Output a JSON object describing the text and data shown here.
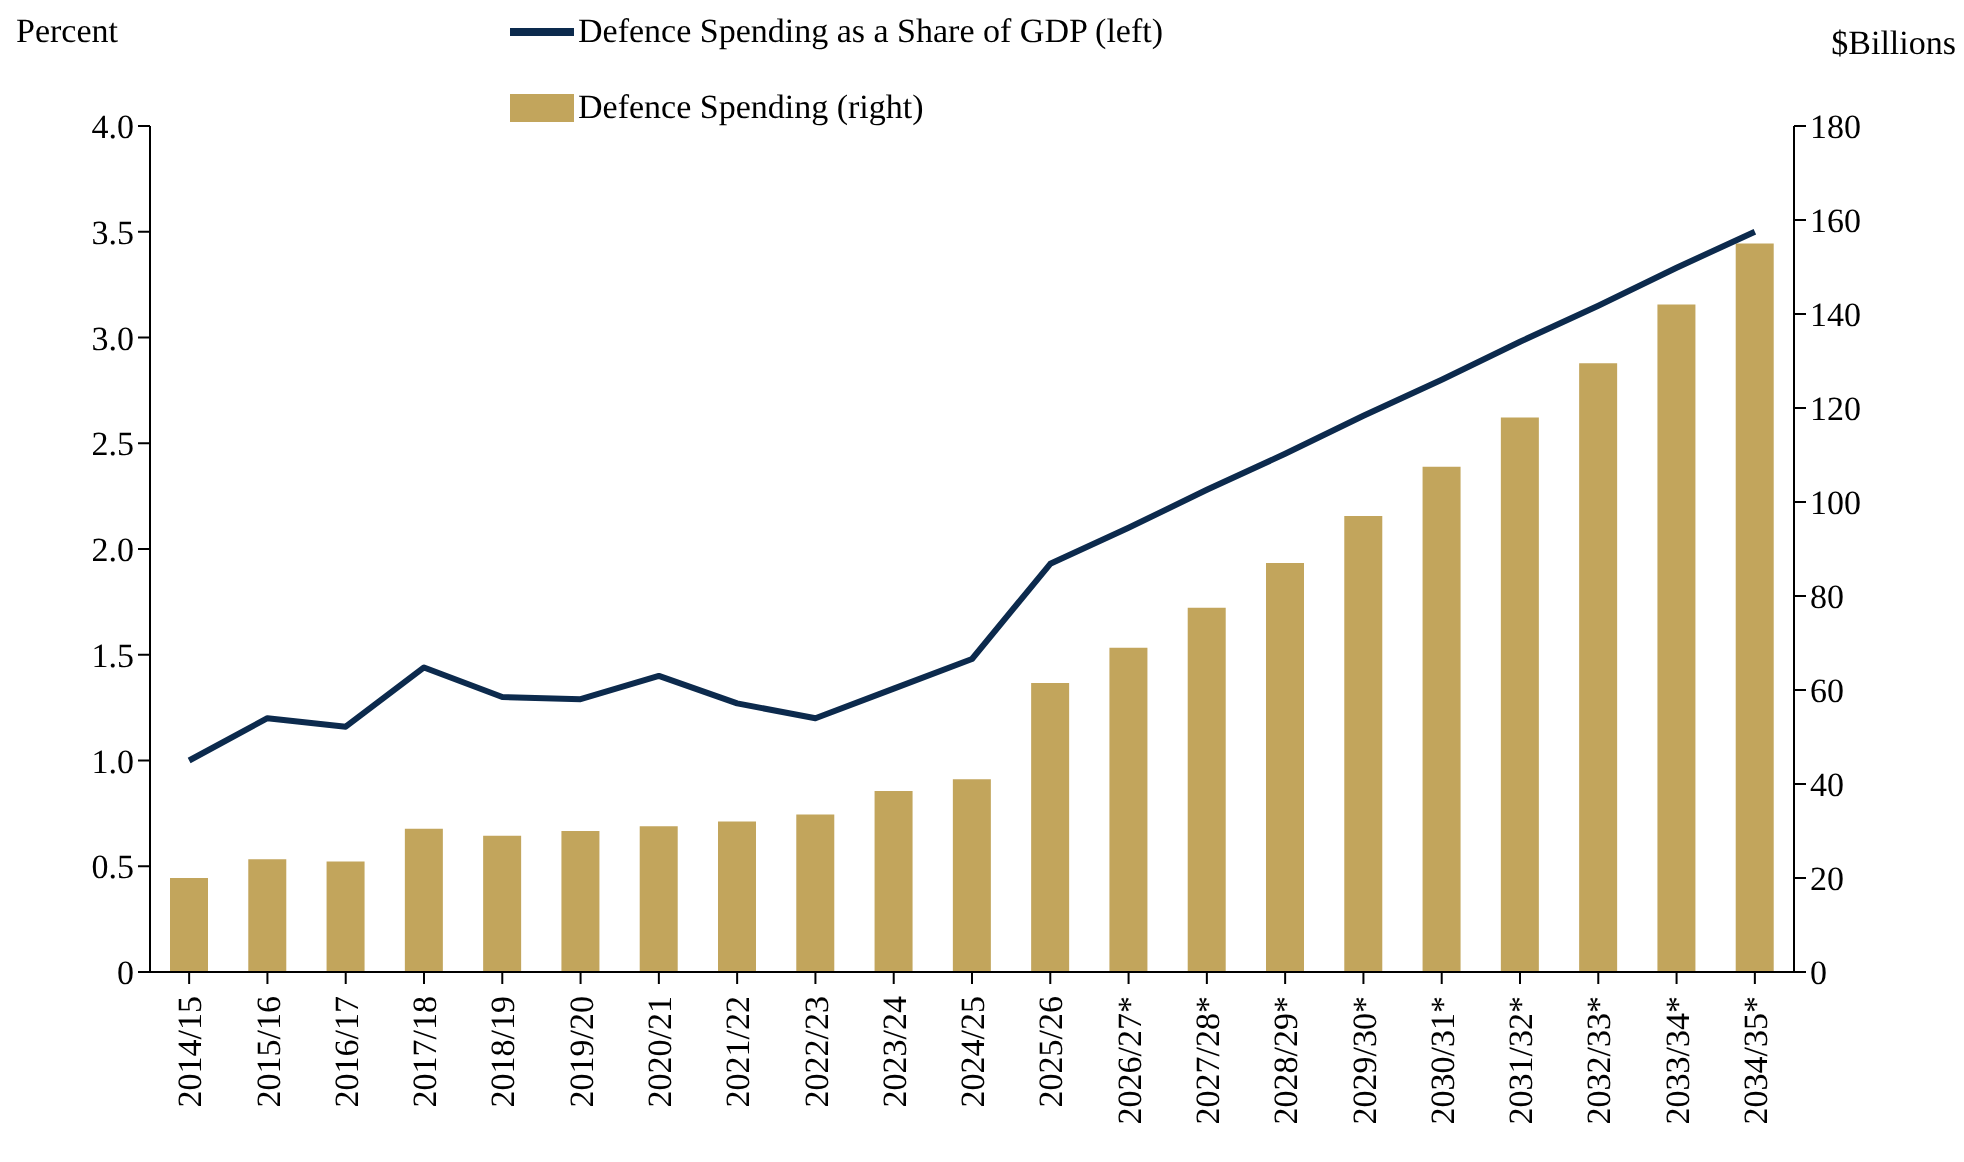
{
  "chart_data": {
    "type": "bar",
    "categories": [
      "2014/15",
      "2015/16",
      "2016/17",
      "2017/18",
      "2018/19",
      "2019/20",
      "2020/21",
      "2021/22",
      "2022/23",
      "2023/24",
      "2024/25",
      "2025/26",
      "2026/27*",
      "2027/28*",
      "2028/29*",
      "2029/30*",
      "2030/31*",
      "2031/32*",
      "2032/33*",
      "2033/34*",
      "2034/35*"
    ],
    "series": [
      {
        "name": "Defence Spending as a Share of GDP (left)",
        "type": "line",
        "color": "#0c2a4d",
        "values": [
          1.0,
          1.2,
          1.16,
          1.44,
          1.3,
          1.29,
          1.4,
          1.27,
          1.2,
          1.34,
          1.48,
          1.93,
          2.1,
          2.28,
          2.45,
          2.63,
          2.8,
          2.98,
          3.15,
          3.33,
          3.5
        ]
      },
      {
        "name": "Defence Spending (right)",
        "axis": "y2",
        "color": "#c2a55c",
        "values": [
          20,
          24,
          23.5,
          30.5,
          29,
          30,
          31,
          32,
          33.5,
          38.5,
          41,
          61.5,
          69,
          77.5,
          87,
          97,
          107.5,
          118,
          129.5,
          142,
          155
        ]
      }
    ],
    "ylabel": "Percent",
    "y2label": "$Billions",
    "ylim": [
      0,
      4
    ],
    "yticks": [
      0,
      {
        "value": 0.5,
        "label": "0.5"
      },
      {
        "value": 1,
        "label": "1.0"
      },
      {
        "value": 1.5,
        "label": "1.5"
      },
      {
        "value": 2,
        "label": "2.0"
      },
      {
        "value": 2.5,
        "label": "2.5"
      },
      {
        "value": 3,
        "label": "3.0"
      },
      {
        "value": 3.5,
        "label": "3.5"
      },
      {
        "value": 4,
        "label": "4.0"
      }
    ],
    "y2lim": [
      0,
      180
    ],
    "y2ticks": [
      0,
      20,
      40,
      60,
      80,
      100,
      120,
      140,
      160,
      180
    ],
    "grid": false,
    "legend": "top",
    "marker": "none"
  }
}
